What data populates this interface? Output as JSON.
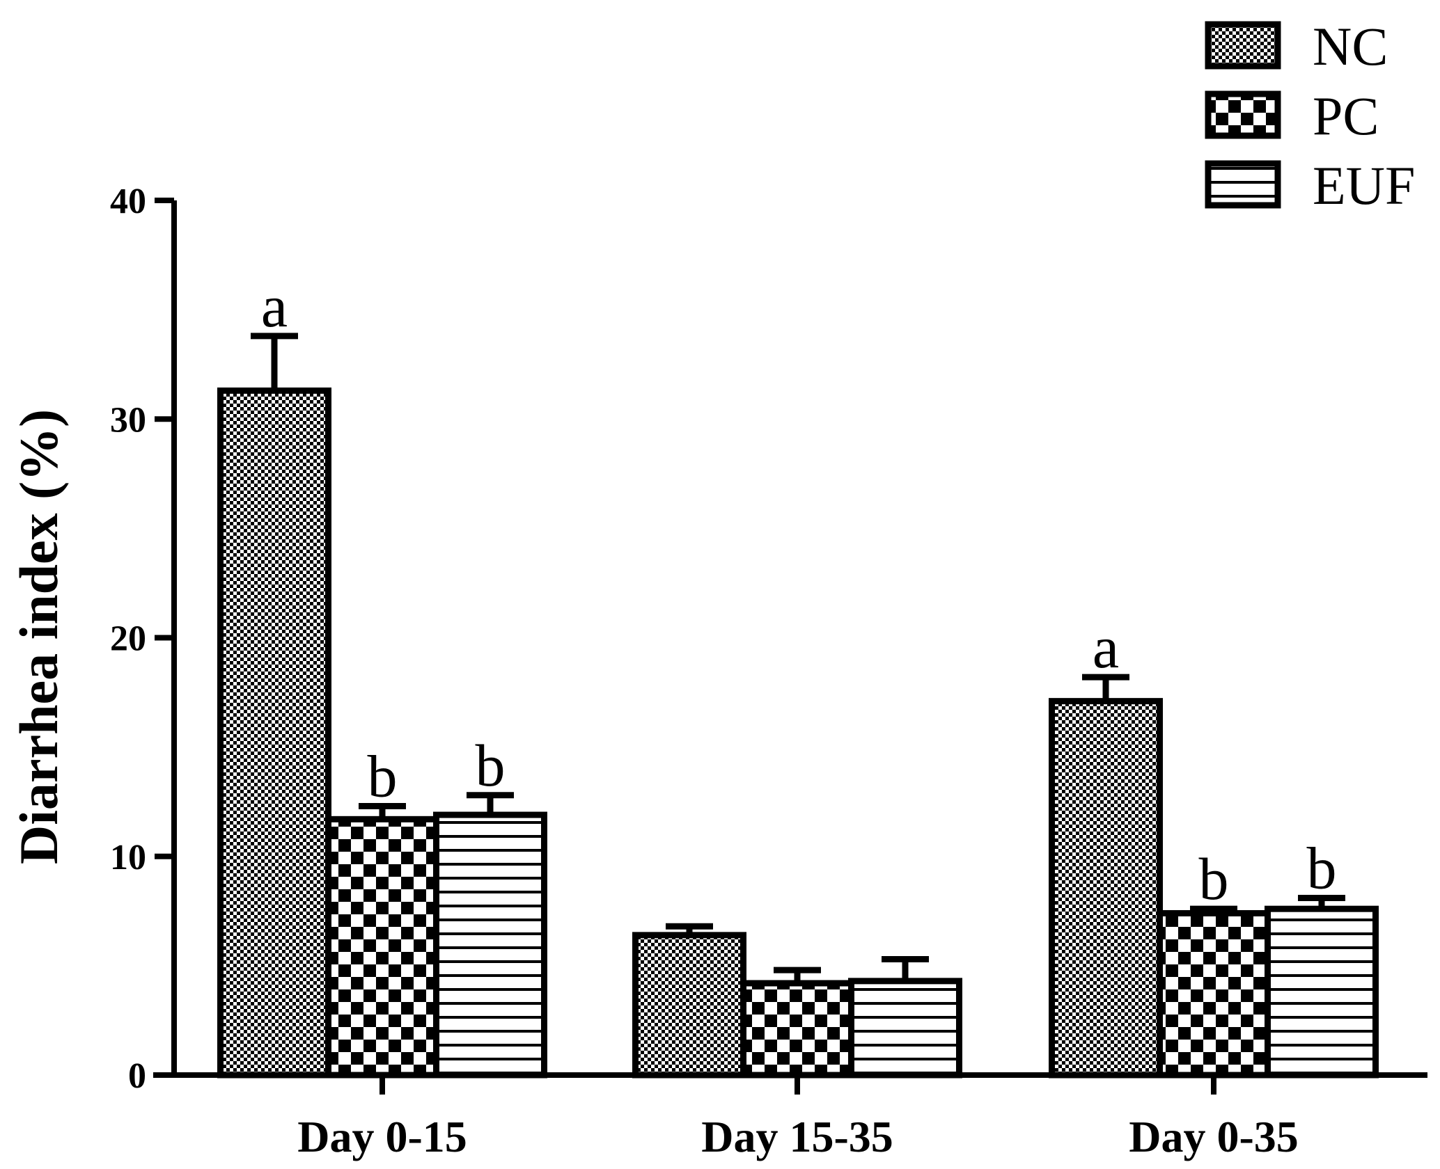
{
  "chart_data": {
    "type": "bar",
    "ylabel": "Diarrhea index (%)",
    "xlabel": "",
    "ylim": [
      0,
      40
    ],
    "yticks": [
      0,
      10,
      20,
      30,
      40
    ],
    "categories": [
      "Day 0-15",
      "Day 15-35",
      "Day 0-35"
    ],
    "series": [
      {
        "name": "NC",
        "pattern": "fine-check",
        "values": [
          31.3,
          6.4,
          17.1
        ],
        "errors": [
          2.5,
          0.4,
          1.1
        ],
        "sig": [
          "a",
          "",
          "a"
        ]
      },
      {
        "name": "PC",
        "pattern": "coarse-check",
        "values": [
          11.7,
          4.2,
          7.4
        ],
        "errors": [
          0.6,
          0.6,
          0.2
        ],
        "sig": [
          "b",
          "",
          "b"
        ]
      },
      {
        "name": "EUF",
        "pattern": "horizontal-lines",
        "values": [
          11.9,
          4.3,
          7.6
        ],
        "errors": [
          0.9,
          1.0,
          0.5
        ],
        "sig": [
          "b",
          "",
          "b"
        ]
      }
    ],
    "legend_position": "top-right",
    "grid": false,
    "colors": {
      "ink": "#000000",
      "fill": "#ffffff"
    }
  }
}
